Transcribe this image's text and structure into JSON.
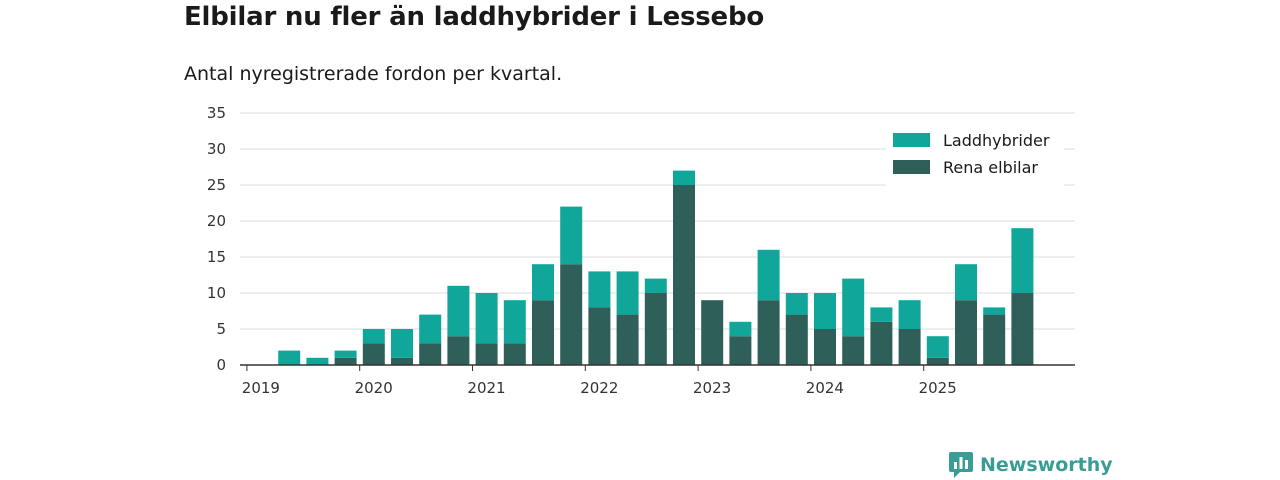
{
  "chart_data": {
    "type": "bar",
    "stacked": true,
    "title": "Elbilar nu fler än laddhybrider i Lessebo",
    "subtitle": "Antal nyregistrerade fordon per kvartal.",
    "xlabel": "",
    "ylabel": "",
    "ylim": [
      0,
      35
    ],
    "yticks": [
      0,
      5,
      10,
      15,
      20,
      25,
      30,
      35
    ],
    "grid": true,
    "legend_position": "top-right",
    "xtick_labels": [
      "2019",
      "2020",
      "2021",
      "2022",
      "2023",
      "2024",
      "2025"
    ],
    "categories": [
      "2019 Q1",
      "2019 Q2",
      "2019 Q3",
      "2019 Q4",
      "2020 Q1",
      "2020 Q2",
      "2020 Q3",
      "2020 Q4",
      "2021 Q1",
      "2021 Q2",
      "2021 Q3",
      "2021 Q4",
      "2022 Q1",
      "2022 Q2",
      "2022 Q3",
      "2022 Q4",
      "2023 Q1",
      "2023 Q2",
      "2023 Q3",
      "2023 Q4",
      "2024 Q1",
      "2024 Q2",
      "2024 Q3",
      "2024 Q4",
      "2025 Q1",
      "2025 Q2",
      "2025 Q3",
      "2025 Q4"
    ],
    "series": [
      {
        "name": "Rena elbilar",
        "color": "#2f5f59",
        "values": [
          0,
          0,
          0,
          1,
          3,
          1,
          3,
          4,
          3,
          3,
          9,
          14,
          8,
          7,
          10,
          25,
          9,
          4,
          9,
          7,
          5,
          4,
          6,
          5,
          1,
          9,
          7,
          10
        ]
      },
      {
        "name": "Laddhybrider",
        "color": "#10a69a",
        "values": [
          0,
          2,
          1,
          1,
          2,
          4,
          4,
          7,
          7,
          6,
          5,
          8,
          5,
          6,
          2,
          2,
          0,
          2,
          7,
          3,
          5,
          8,
          2,
          4,
          3,
          5,
          1,
          9
        ]
      }
    ]
  },
  "brand": {
    "name": "Newsworthy",
    "color": "#3a9d95"
  }
}
